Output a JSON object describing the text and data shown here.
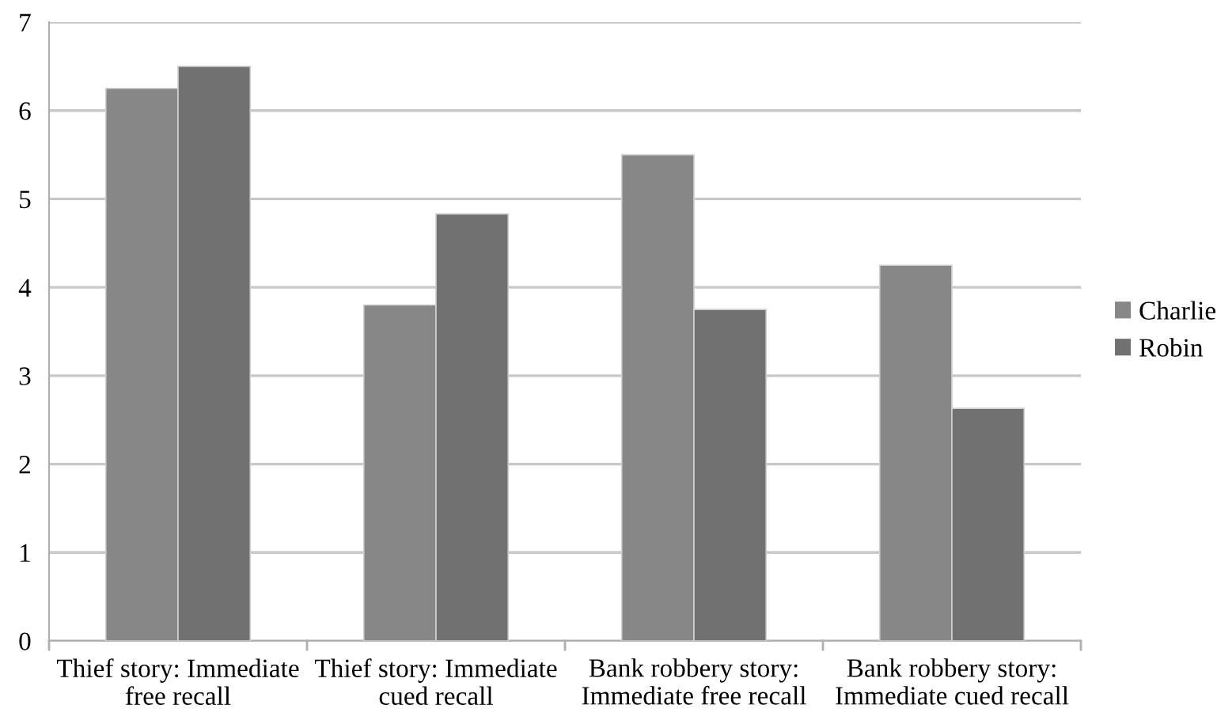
{
  "chart_data": {
    "type": "bar",
    "categories": [
      "Thief story: Immediate\nfree recall",
      "Thief story: Immediate\ncued recall",
      "Bank robbery story:\nImmediate free recall",
      "Bank robbery story:\nImmediate cued recall"
    ],
    "series": [
      {
        "name": "Charlie",
        "color": "#878787",
        "values": [
          6.25,
          3.8,
          5.5,
          4.25
        ]
      },
      {
        "name": "Robin",
        "color": "#717171",
        "values": [
          6.5,
          4.83,
          3.75,
          2.63
        ]
      }
    ],
    "ylim": [
      0,
      7
    ],
    "yticks": [
      0,
      1,
      2,
      3,
      4,
      5,
      6,
      7
    ],
    "grid": "y",
    "legend": "right"
  }
}
